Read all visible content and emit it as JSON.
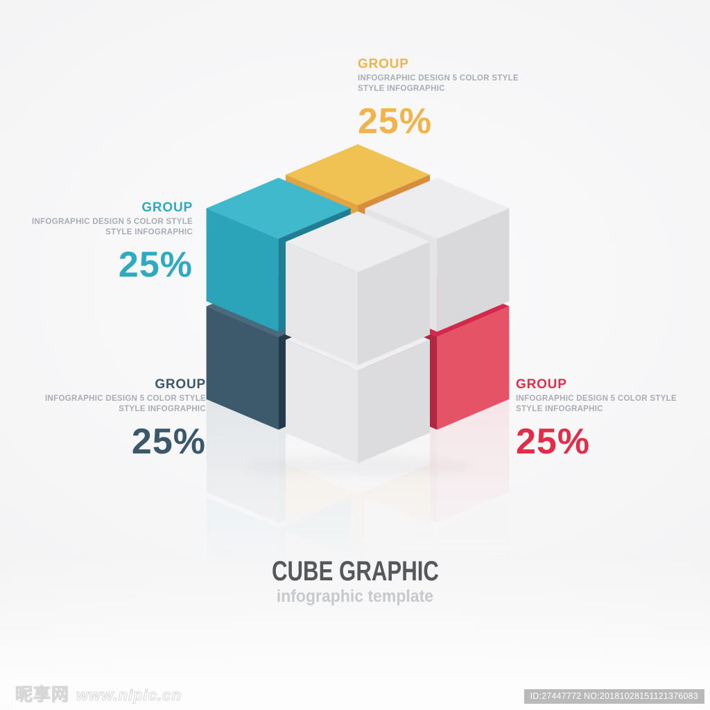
{
  "title": {
    "main": "CUBE GRAPHIC",
    "sub": "infographic template"
  },
  "desc_text_color": "#A8ADB5",
  "groups": [
    {
      "position": "top",
      "heading": "GROUP",
      "desc_line1": "INFOGRAPHIC DESIGN 5 COLOR STYLE",
      "desc_line2": "STYLE INFOGRAPHIC",
      "value": "25%",
      "color": "#EFB44E"
    },
    {
      "position": "left",
      "heading": "GROUP",
      "desc_line1": "INFOGRAPHIC DESIGN 5 COLOR STYLE",
      "desc_line2": "STYLE INFOGRAPHIC",
      "value": "25%",
      "color": "#2FAAC0"
    },
    {
      "position": "bottom-left",
      "heading": "GROUP",
      "desc_line1": "INFOGRAPHIC DESIGN 5 COLOR STYLE",
      "desc_line2": "STYLE INFOGRAPHIC",
      "value": "25%",
      "color": "#3A586A"
    },
    {
      "position": "bottom-right",
      "heading": "GROUP",
      "desc_line1": "INFOGRAPHIC DESIGN 5 COLOR STYLE",
      "desc_line2": "STYLE INFOGRAPHIC",
      "value": "25%",
      "color": "#E22D49"
    }
  ],
  "cube": {
    "cells": [
      {
        "name": "navy",
        "i": 0,
        "j": 1,
        "layer": 0,
        "top": "#49697C",
        "left": "#3C5A6B",
        "right": "#233B4A"
      },
      {
        "name": "red",
        "i": 1,
        "j": 0,
        "layer": 0,
        "top": "#D5294B",
        "left": "#AD2841",
        "right": "#E55367"
      },
      {
        "name": "white-front-bottom",
        "i": 1,
        "j": 1,
        "layer": 0,
        "top": "#EFEFF1",
        "left": "#E8E8EA",
        "right": "#DCDCDF"
      },
      {
        "name": "yellow",
        "i": 0,
        "j": 0,
        "layer": 1,
        "top": "#F0C153",
        "left": "#E2A441",
        "right": "#D78E3C"
      },
      {
        "name": "white-right-top",
        "i": 1,
        "j": 0,
        "layer": 1,
        "top": "#EDEDEF",
        "left": "#E4E4E7",
        "right": "#D9D9DC"
      },
      {
        "name": "teal",
        "i": 0,
        "j": 1,
        "layer": 1,
        "top": "#3FB9CB",
        "left": "#2BA3B9",
        "right": "#1F7E94"
      },
      {
        "name": "white-front-top",
        "i": 1,
        "j": 1,
        "layer": 1,
        "top": "#EEEEF0",
        "left": "#E7E7E9",
        "right": "#DBDBDE"
      }
    ],
    "shadow_color": "#BFBFC3"
  },
  "watermark": {
    "site_name": "昵享网",
    "site_url": "www.nipic.cn",
    "id_text": "ID:27447772 NO:20181028151121376083"
  }
}
